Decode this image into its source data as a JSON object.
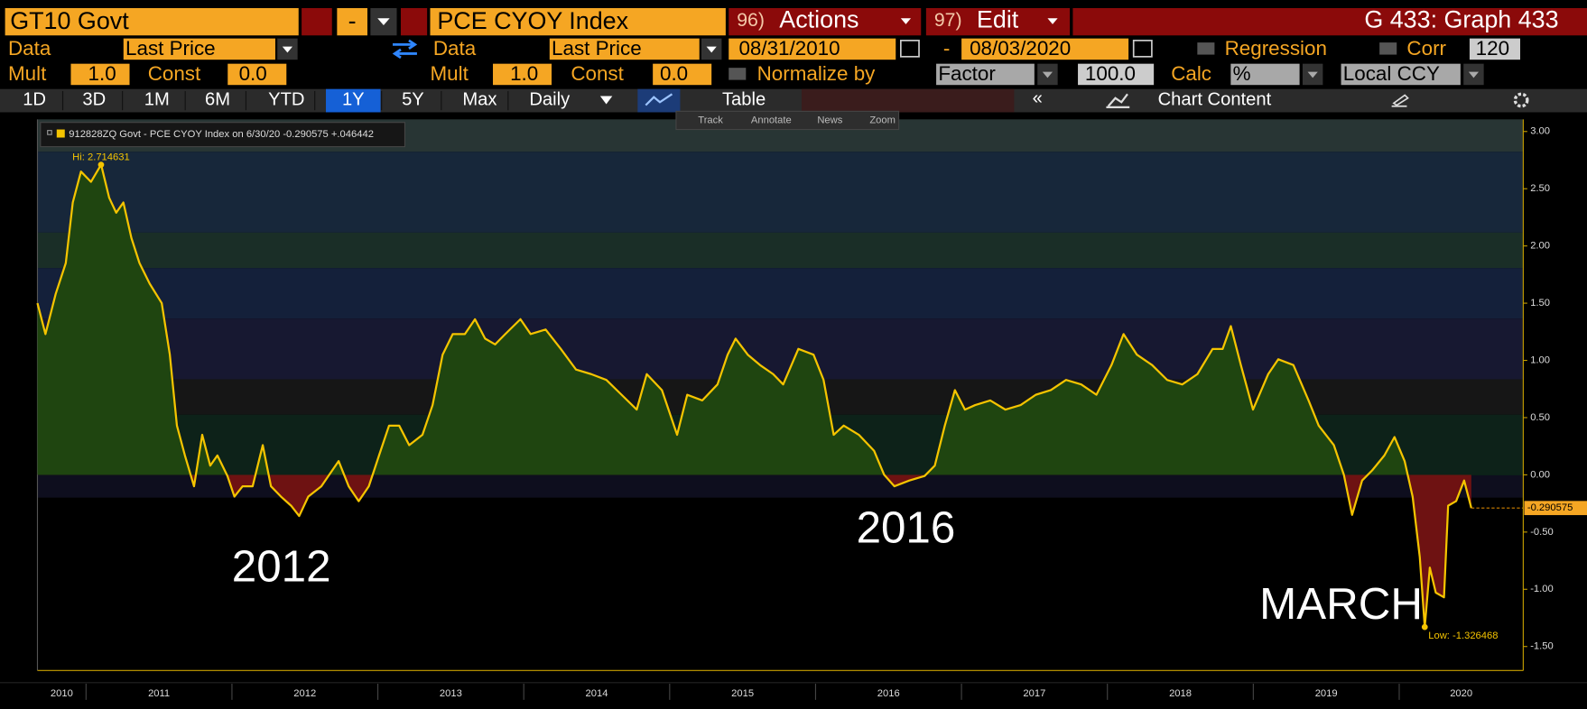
{
  "toolbar": {
    "security": "GT10 Govt",
    "separator": "-",
    "index": "PCE CYOY Index",
    "actions_num": "96)",
    "actions": "Actions",
    "edit_num": "97)",
    "edit": "Edit",
    "graph": "G 433: Graph 433",
    "row2": {
      "data_1": "Data",
      "field_1": "Last Price",
      "data_2": "Data",
      "field_2": "Last Price",
      "start_date": "08/31/2010",
      "date_sep": "-",
      "end_date": "08/03/2020",
      "regression": "Regression",
      "corr": "Corr",
      "corr_value": "120"
    },
    "row3": {
      "mult_1": "Mult",
      "mult_1_value": "1.0",
      "const_1": "Const",
      "const_1_value": "0.0",
      "mult_2": "Mult",
      "mult_2_value": "1.0",
      "const_2": "Const",
      "const_2_value": "0.0",
      "normalize": "Normalize by",
      "normalize_mode": "Factor",
      "factor_value": "100.0",
      "calc": "Calc",
      "calc_mode": "%",
      "currency": "Local CCY"
    },
    "periods": [
      "1D",
      "3D",
      "1M",
      "6M",
      "YTD",
      "1Y",
      "5Y",
      "Max"
    ],
    "frequency": "Daily",
    "table": "Table",
    "chart_content": "Chart Content",
    "tools": [
      "Track",
      "Annotate",
      "News",
      "Zoom"
    ]
  },
  "chart_data": {
    "type": "line",
    "series": [
      {
        "name": "912828ZQ Govt - PCE CYOY Index",
        "color": "#f5c400",
        "x": [
          2010.667,
          2010.722,
          2010.792,
          2010.861,
          2010.909,
          2010.965,
          2011.034,
          2011.103,
          2011.159,
          2011.207,
          2011.256,
          2011.311,
          2011.366,
          2011.436,
          2011.519,
          2011.574,
          2011.623,
          2011.678,
          2011.74,
          2011.796,
          2011.851,
          2011.9,
          2011.969,
          2012.017,
          2012.073,
          2012.142,
          2012.211,
          2012.267,
          2012.336,
          2012.405,
          2012.461,
          2012.523,
          2012.613,
          2012.661,
          2012.731,
          2012.8,
          2012.869,
          2012.938,
          2013.008,
          2013.077,
          2013.146,
          2013.215,
          2013.306,
          2013.375,
          2013.444,
          2013.513,
          2013.596,
          2013.666,
          2013.735,
          2013.804,
          2013.873,
          2013.977,
          2014.047,
          2014.15,
          2014.254,
          2014.358,
          2014.462,
          2014.566,
          2014.67,
          2014.774,
          2014.843,
          2014.947,
          2015.051,
          2015.12,
          2015.224,
          2015.328,
          2015.397,
          2015.452,
          2015.535,
          2015.619,
          2015.709,
          2015.778,
          2015.882,
          2015.986,
          2016.055,
          2016.124,
          2016.193,
          2016.297,
          2016.401,
          2016.47,
          2016.54,
          2016.643,
          2016.747,
          2016.817,
          2016.886,
          2016.955,
          2017.024,
          2017.094,
          2017.197,
          2017.301,
          2017.405,
          2017.509,
          2017.613,
          2017.717,
          2017.821,
          2017.925,
          2018.028,
          2018.111,
          2018.202,
          2018.306,
          2018.409,
          2018.513,
          2018.617,
          2018.721,
          2018.79,
          2018.846,
          2018.915,
          2018.998,
          2019.102,
          2019.171,
          2019.275,
          2019.379,
          2019.448,
          2019.552,
          2019.621,
          2019.677,
          2019.746,
          2019.815,
          2019.898,
          2019.968,
          2020.037,
          2020.092,
          2020.141,
          2020.175,
          2020.21,
          2020.251,
          2020.307,
          2020.335,
          2020.39,
          2020.445,
          2020.494
        ],
        "values": [
          1.5,
          1.23,
          1.58,
          1.85,
          2.38,
          2.65,
          2.56,
          2.71,
          2.42,
          2.29,
          2.38,
          2.07,
          1.85,
          1.67,
          1.5,
          1.05,
          0.43,
          0.17,
          -0.1,
          0.35,
          0.08,
          0.17,
          -0.01,
          -0.19,
          -0.1,
          -0.1,
          0.26,
          -0.1,
          -0.19,
          -0.27,
          -0.36,
          -0.19,
          -0.1,
          -0.01,
          0.12,
          -0.1,
          -0.23,
          -0.1,
          0.17,
          0.43,
          0.43,
          0.26,
          0.35,
          0.61,
          1.05,
          1.23,
          1.23,
          1.36,
          1.19,
          1.14,
          1.23,
          1.36,
          1.23,
          1.27,
          1.1,
          0.92,
          0.88,
          0.83,
          0.7,
          0.57,
          0.88,
          0.74,
          0.35,
          0.7,
          0.65,
          0.79,
          1.05,
          1.19,
          1.05,
          0.96,
          0.88,
          0.79,
          1.1,
          1.05,
          0.83,
          0.35,
          0.43,
          0.35,
          0.21,
          0.0,
          -0.1,
          -0.05,
          -0.01,
          0.08,
          0.43,
          0.74,
          0.57,
          0.61,
          0.65,
          0.57,
          0.61,
          0.7,
          0.74,
          0.83,
          0.79,
          0.7,
          0.96,
          1.23,
          1.05,
          0.96,
          0.83,
          0.79,
          0.88,
          1.1,
          1.1,
          1.3,
          0.96,
          0.57,
          0.88,
          1.01,
          0.96,
          0.65,
          0.43,
          0.26,
          0.0,
          -0.35,
          -0.05,
          0.04,
          0.17,
          0.33,
          0.12,
          -0.19,
          -0.72,
          -1.33,
          -0.81,
          -1.03,
          -1.07,
          -0.27,
          -0.23,
          -0.05,
          -0.29
        ]
      }
    ],
    "legend_detail": "on 6/30/20 -0.290575 +.046442",
    "hi_label": "Hi: 2.714631",
    "low_label": "Low: -1.326468",
    "last_value_label": "-0.290575",
    "annotations": [
      "2012",
      "2016",
      "MARCH"
    ],
    "area_colors": {
      "positive": "#1f4510",
      "negative": "#6e1212"
    },
    "xlim": [
      2010.667,
      2020.85
    ],
    "xticks": [
      2010,
      2011,
      2012,
      2013,
      2014,
      2015,
      2016,
      2017,
      2018,
      2019,
      2020
    ],
    "ylim": [
      -1.71,
      3.106
    ],
    "yticks": [
      {
        "value": 3,
        "label": "3.00"
      },
      {
        "value": 2.5,
        "label": "2.50"
      },
      {
        "value": 2,
        "label": "2.00"
      },
      {
        "value": 1.5,
        "label": "1.50"
      },
      {
        "value": 1,
        "label": "1.00"
      },
      {
        "value": 0.5,
        "label": "0.50"
      },
      {
        "value": 0,
        "label": "0.00"
      },
      {
        "value": -0.5,
        "label": "-0.50"
      },
      {
        "value": -1,
        "label": "-1.00"
      },
      {
        "value": -1.5,
        "label": "-1.50"
      }
    ],
    "y_axis_side": "right"
  }
}
